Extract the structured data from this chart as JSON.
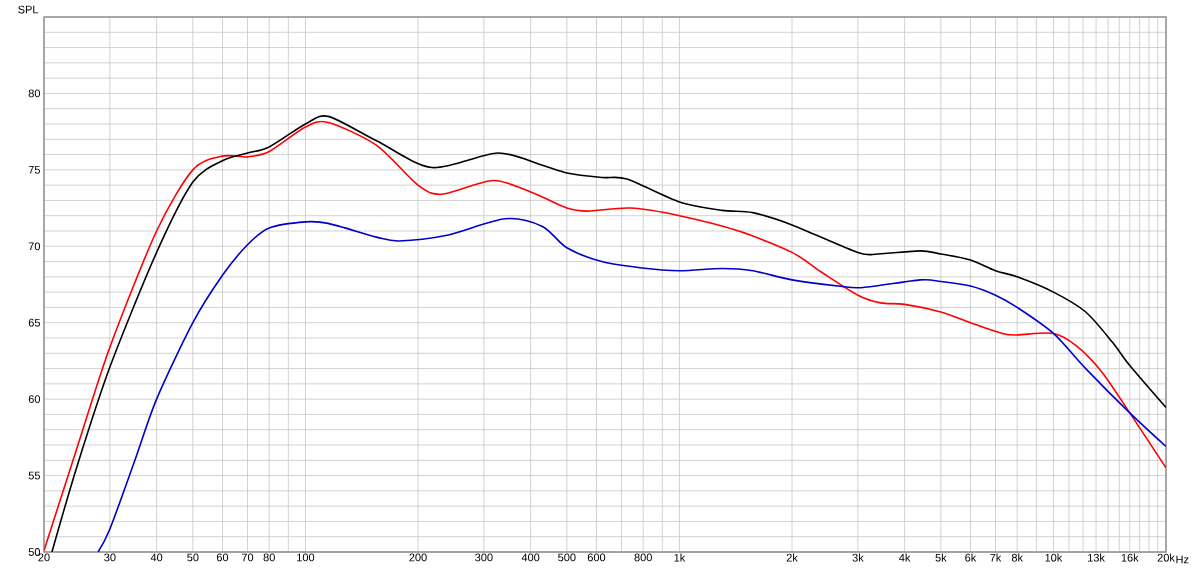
{
  "chart_data": {
    "type": "line",
    "ylabel": "SPL",
    "xlabel": "Hz",
    "log": "x",
    "grid": true,
    "xlim": [
      20,
      20000
    ],
    "ylim": [
      50,
      85
    ],
    "xticks": [
      20,
      30,
      40,
      50,
      60,
      70,
      80,
      {
        "value": 90,
        "label": null
      },
      100,
      200,
      300,
      400,
      500,
      600,
      {
        "value": 700,
        "label": null
      },
      800,
      {
        "value": 900,
        "label": null
      },
      {
        "value": 1000,
        "label": "1k"
      },
      {
        "value": 2000,
        "label": "2k"
      },
      {
        "value": 3000,
        "label": "3k"
      },
      {
        "value": 4000,
        "label": "4k"
      },
      {
        "value": 5000,
        "label": "5k"
      },
      {
        "value": 6000,
        "label": "6k"
      },
      {
        "value": 7000,
        "label": "7k"
      },
      {
        "value": 8000,
        "label": "8k"
      },
      {
        "value": 9000,
        "label": null
      },
      {
        "value": 10000,
        "label": "10k"
      },
      {
        "value": 11000,
        "label": null
      },
      {
        "value": 12000,
        "label": null
      },
      {
        "value": 13000,
        "label": "13k"
      },
      {
        "value": 14000,
        "label": null
      },
      {
        "value": 15000,
        "label": null
      },
      {
        "value": 16000,
        "label": "16k"
      },
      {
        "value": 17000,
        "label": null
      },
      {
        "value": 18000,
        "label": null
      },
      {
        "value": 19000,
        "label": null
      },
      {
        "value": 20000,
        "label": "20k"
      }
    ],
    "yticks": [
      50,
      {
        "value": 51,
        "label": null
      },
      {
        "value": 52,
        "label": null
      },
      {
        "value": 53,
        "label": null
      },
      {
        "value": 54,
        "label": null
      },
      55,
      {
        "value": 56,
        "label": null
      },
      {
        "value": 57,
        "label": null
      },
      {
        "value": 58,
        "label": null
      },
      {
        "value": 59,
        "label": null
      },
      60,
      {
        "value": 61,
        "label": null
      },
      {
        "value": 62,
        "label": null
      },
      {
        "value": 63,
        "label": null
      },
      {
        "value": 64,
        "label": null
      },
      65,
      {
        "value": 66,
        "label": null
      },
      {
        "value": 67,
        "label": null
      },
      {
        "value": 68,
        "label": null
      },
      {
        "value": 69,
        "label": null
      },
      70,
      {
        "value": 71,
        "label": null
      },
      {
        "value": 72,
        "label": null
      },
      {
        "value": 73,
        "label": null
      },
      {
        "value": 74,
        "label": null
      },
      75,
      {
        "value": 76,
        "label": null
      },
      {
        "value": 77,
        "label": null
      },
      {
        "value": 78,
        "label": null
      },
      {
        "value": 79,
        "label": null
      },
      80,
      {
        "value": 81,
        "label": null
      },
      {
        "value": 82,
        "label": null
      },
      {
        "value": 83,
        "label": null
      },
      {
        "value": 84,
        "label": null
      }
    ],
    "series": [
      {
        "color": "#ff0000",
        "x": [
          20,
          24.5,
          30,
          40,
          50,
          60,
          70,
          80,
          100,
          115,
          155,
          200,
          232,
          318,
          405,
          500,
          569,
          740,
          1000,
          1440,
          2000,
          2400,
          3000,
          3450,
          4000,
          5000,
          6000,
          7300,
          8000,
          10000,
          11500,
          13500,
          16000,
          20000
        ],
        "values": [
          50.1,
          56.8,
          63.4,
          71.0,
          75.0,
          75.9,
          75.85,
          76.2,
          77.8,
          78.1,
          76.6,
          74.0,
          73.4,
          74.3,
          73.5,
          72.5,
          72.3,
          72.5,
          72.0,
          71.0,
          69.6,
          68.3,
          66.8,
          66.3,
          66.2,
          65.7,
          65.0,
          64.3,
          64.2,
          64.3,
          63.5,
          61.75,
          59.1,
          55.5
        ]
      },
      {
        "color": "#000000",
        "x": [
          21,
          24.5,
          30,
          40,
          50,
          60,
          70,
          80,
          100,
          115,
          155,
          218,
          327,
          430,
          500,
          620,
          724,
          1000,
          1300,
          1570,
          2000,
          3000,
          3400,
          4400,
          5000,
          6000,
          7000,
          8000,
          10000,
          12200,
          14400,
          16000,
          20000
        ],
        "values": [
          50.0,
          55.6,
          62.1,
          69.6,
          74.2,
          75.6,
          76.1,
          76.5,
          78.0,
          78.5,
          76.9,
          75.15,
          76.1,
          75.3,
          74.8,
          74.5,
          74.4,
          72.9,
          72.35,
          72.2,
          71.4,
          69.6,
          69.5,
          69.7,
          69.5,
          69.1,
          68.4,
          68.0,
          67.0,
          65.7,
          63.7,
          62.2,
          59.45
        ]
      },
      {
        "color": "#0000cc",
        "x": [
          27.9,
          30,
          35,
          40,
          50,
          60,
          70,
          80,
          100,
          115,
          155,
          178,
          237,
          342,
          430,
          500,
          620,
          785,
          1000,
          1300,
          1570,
          2000,
          2650,
          3100,
          4400,
          5000,
          6000,
          7000,
          8000,
          10000,
          12200,
          16000,
          20000
        ],
        "values": [
          50.0,
          51.5,
          56.0,
          60.0,
          65.0,
          68.1,
          70.1,
          71.2,
          71.6,
          71.5,
          70.6,
          70.35,
          70.7,
          71.8,
          71.3,
          69.9,
          69.0,
          68.6,
          68.4,
          68.55,
          68.4,
          67.8,
          67.4,
          67.3,
          67.8,
          67.7,
          67.4,
          66.8,
          66.0,
          64.3,
          62.0,
          59.1,
          56.9
        ]
      }
    ]
  }
}
